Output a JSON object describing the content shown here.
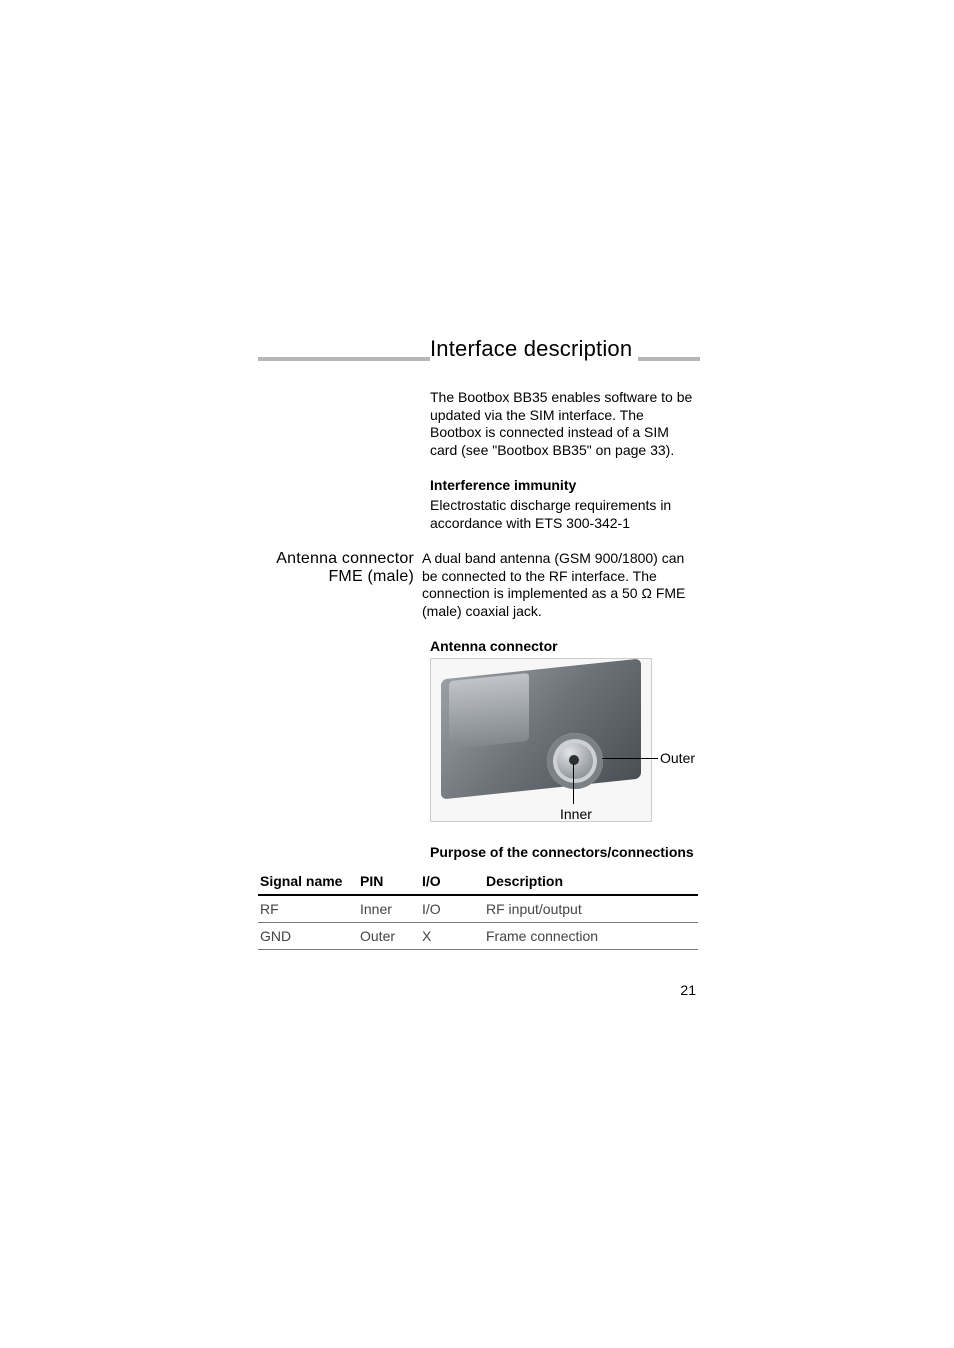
{
  "header": {
    "title": "Interface description",
    "underline_color": "#b6b6b6"
  },
  "intro": {
    "text": "The Bootbox BB35 enables software to be updated via the SIM interface. The Bootbox is connected instead of a SIM card (see \"Bootbox BB35\" on page 33)."
  },
  "interference": {
    "heading": "Interference immunity",
    "text": "Electrostatic discharge requirements in accordance with ETS 300-342-1"
  },
  "antenna": {
    "side_heading_line1": "Antenna connector",
    "side_heading_line2": "FME (male)",
    "text": "A dual band antenna (GSM 900/1800) can be connected to the RF interface. The connection is implemented as a 50 Ω FME (male) coaxial jack.",
    "fig_heading": "Antenna connector",
    "label_outer": "Outer",
    "label_inner": "Inner"
  },
  "table": {
    "caption": "Purpose of the connectors/connections",
    "columns": [
      "Signal name",
      "PIN",
      "I/O",
      "Description"
    ],
    "rows": [
      [
        "RF",
        "Inner",
        "I/O",
        "RF input/output"
      ],
      [
        "GND",
        "Outer",
        "X",
        "Frame connection"
      ]
    ],
    "header_border_color": "#000000",
    "row_border_color": "#7a7a7a",
    "text_color": "#444444"
  },
  "page_number": "21",
  "colors": {
    "background": "#ffffff",
    "text": "#000000"
  },
  "typography": {
    "body_fontsize": 14,
    "title_fontsize": 22,
    "sidehead_fontsize": 16
  }
}
